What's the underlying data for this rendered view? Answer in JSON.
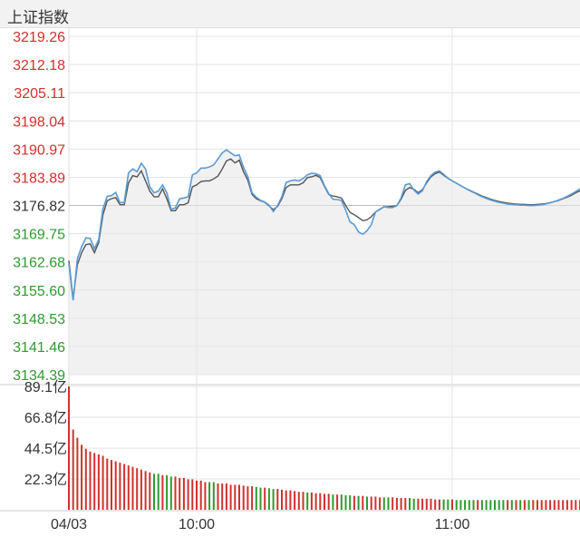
{
  "title": "上证指数",
  "colors": {
    "up": "#d0312d",
    "down": "#2e9b2e",
    "neutral": "#333333",
    "index_line": "#5a9bd5",
    "avg_line": "#555555",
    "grid": "#e3e3e3",
    "fill": "#e8e8e8"
  },
  "chart_data": [
    {
      "type": "line",
      "title": "上证指数",
      "prev_close": 3176.82,
      "ylim": [
        3134.39,
        3219.26
      ],
      "y_ticks": [
        "3219.26",
        "3212.18",
        "3205.11",
        "3198.04",
        "3190.97",
        "3183.89",
        "3176.82",
        "3169.75",
        "3162.68",
        "3155.60",
        "3148.53",
        "3141.46",
        "3134.39"
      ],
      "x": [
        0,
        2,
        4,
        6,
        8,
        10,
        12,
        14,
        16,
        18,
        20,
        22,
        24,
        26,
        28,
        30,
        32,
        34,
        36,
        38,
        40,
        42,
        44,
        46,
        48,
        50,
        52,
        54,
        56,
        58,
        60,
        62,
        64,
        66,
        68,
        70,
        72,
        74,
        76,
        78,
        80,
        82,
        84,
        86,
        88,
        90,
        92,
        94,
        96,
        98,
        100,
        102,
        104,
        106,
        108,
        110,
        112,
        114,
        116,
        118,
        120,
        122,
        124,
        126,
        128,
        130,
        132,
        134,
        136,
        138,
        140,
        142,
        144,
        146,
        148,
        150,
        152,
        154,
        156,
        158,
        160,
        162,
        164,
        166,
        168,
        170,
        172,
        174,
        176,
        178,
        180,
        182,
        184,
        186,
        188,
        190,
        192,
        194,
        196,
        198,
        200,
        202,
        204,
        206,
        208,
        210,
        212,
        214,
        216,
        218,
        220,
        222,
        224,
        226,
        228,
        230,
        232,
        234,
        236,
        238,
        240
      ],
      "x_ticks": [
        {
          "x": 0,
          "label": "04/03"
        },
        {
          "x": 60,
          "label": "10:00"
        },
        {
          "x": 180,
          "label": "11:00"
        }
      ],
      "series": [
        {
          "role": "index",
          "values": [
            3162.2,
            3153.0,
            3163.5,
            3166.5,
            3168.7,
            3168.6,
            3166.0,
            3168.2,
            3176.0,
            3179.1,
            3179.3,
            3180.1,
            3177.5,
            3177.6,
            3185.0,
            3186.0,
            3185.3,
            3187.4,
            3186.0,
            3181.5,
            3180.0,
            3180.4,
            3182.0,
            3180.0,
            3175.9,
            3176.2,
            3178.5,
            3178.7,
            3179.0,
            3184.5,
            3185.0,
            3186.2,
            3186.2,
            3186.5,
            3187.0,
            3188.5,
            3190.0,
            3190.8,
            3190.0,
            3189.3,
            3189.5,
            3186.4,
            3184.1,
            3180.0,
            3178.9,
            3178.1,
            3177.7,
            3176.9,
            3175.3,
            3176.8,
            3179.0,
            3182.6,
            3183.0,
            3183.2,
            3183.0,
            3183.6,
            3184.5,
            3184.9,
            3184.8,
            3184.3,
            3181.8,
            3179.8,
            3178.4,
            3178.3,
            3178.1,
            3175.6,
            3172.7,
            3172.0,
            3170.2,
            3169.6,
            3170.5,
            3172.0,
            3175.2,
            3175.8,
            3176.5,
            3176.3,
            3176.3,
            3176.8,
            3178.7,
            3182.0,
            3182.3,
            3180.7,
            3179.7,
            3180.5,
            3182.8,
            3184.3,
            3185.2,
            3185.5,
            3184.6,
            3183.7,
            3183.0,
            3182.4,
            3181.8,
            3181.2,
            3180.6,
            3180.1,
            3179.5,
            3179.0,
            3178.6,
            3178.2,
            3177.9,
            3177.6,
            3177.4,
            3177.2,
            3177.1,
            3177.0,
            3176.9,
            3176.9,
            3176.8,
            3176.8,
            3176.9,
            3177.0,
            3177.2,
            3177.5,
            3177.8,
            3178.2,
            3178.6,
            3179.1,
            3179.7,
            3180.3,
            3181.0
          ]
        },
        {
          "role": "average",
          "values": [
            3163.0,
            3153.5,
            3162.0,
            3165.0,
            3167.0,
            3167.2,
            3165.0,
            3167.5,
            3174.5,
            3178.0,
            3178.5,
            3178.8,
            3177.0,
            3177.0,
            3182.5,
            3184.3,
            3184.0,
            3185.5,
            3183.0,
            3180.4,
            3179.0,
            3179.0,
            3181.0,
            3178.5,
            3175.5,
            3175.5,
            3177.0,
            3177.0,
            3177.5,
            3181.5,
            3182.0,
            3182.8,
            3183.0,
            3183.0,
            3183.5,
            3184.2,
            3186.0,
            3188.0,
            3188.5,
            3187.5,
            3188.2,
            3185.3,
            3183.2,
            3179.6,
            3178.5,
            3178.0,
            3177.6,
            3176.7,
            3175.8,
            3176.6,
            3178.5,
            3181.3,
            3182.0,
            3182.0,
            3182.0,
            3182.5,
            3183.8,
            3184.0,
            3184.4,
            3183.8,
            3181.6,
            3179.6,
            3179.2,
            3179.0,
            3178.7,
            3176.8,
            3175.1,
            3174.5,
            3173.8,
            3173.0,
            3173.2,
            3174.0,
            3175.2,
            3175.9,
            3176.5,
            3176.5,
            3176.6,
            3176.8,
            3178.4,
            3180.6,
            3181.3,
            3180.9,
            3180.0,
            3180.8,
            3182.5,
            3184.0,
            3184.8,
            3185.2,
            3184.4,
            3183.6,
            3183.0,
            3182.4,
            3181.8,
            3181.2,
            3180.7,
            3180.2,
            3179.7,
            3179.2,
            3178.8,
            3178.4,
            3178.1,
            3177.8,
            3177.6,
            3177.4,
            3177.3,
            3177.2,
            3177.1,
            3177.1,
            3177.0,
            3177.0,
            3177.1,
            3177.2,
            3177.3,
            3177.5,
            3177.8,
            3178.1,
            3178.5,
            3178.9,
            3179.4,
            3180.0,
            3180.5
          ]
        }
      ]
    },
    {
      "type": "bar",
      "y_ticks": [
        "89.1亿",
        "66.8亿",
        "44.5亿",
        "22.3亿"
      ],
      "ylim": [
        0,
        89.1
      ],
      "x": [
        0,
        2,
        4,
        6,
        8,
        10,
        12,
        14,
        16,
        18,
        20,
        22,
        24,
        26,
        28,
        30,
        32,
        34,
        36,
        38,
        40,
        42,
        44,
        46,
        48,
        50,
        52,
        54,
        56,
        58,
        60,
        62,
        64,
        66,
        68,
        70,
        72,
        74,
        76,
        78,
        80,
        82,
        84,
        86,
        88,
        90,
        92,
        94,
        96,
        98,
        100,
        102,
        104,
        106,
        108,
        110,
        112,
        114,
        116,
        118,
        120,
        122,
        124,
        126,
        128,
        130,
        132,
        134,
        136,
        138,
        140,
        142,
        144,
        146,
        148,
        150,
        152,
        154,
        156,
        158,
        160,
        162,
        164,
        166,
        168,
        170,
        172,
        174,
        176,
        178,
        180,
        182,
        184,
        186,
        188,
        190,
        192,
        194,
        196,
        198,
        200,
        202,
        204,
        206,
        208,
        210,
        212,
        214,
        216,
        218,
        220,
        222,
        224,
        226,
        228,
        230,
        232,
        234,
        236,
        238,
        240
      ],
      "values": [
        89.1,
        58.0,
        52.0,
        47.0,
        44.0,
        42.0,
        41.0,
        40.0,
        39.0,
        37.0,
        36.0,
        35.0,
        34.0,
        33.0,
        32.0,
        31.0,
        30.0,
        29.0,
        28.0,
        27.0,
        26.0,
        26.0,
        25.0,
        25.0,
        24.0,
        24.0,
        23.0,
        23.0,
        22.0,
        22.0,
        21.0,
        21.0,
        20.0,
        20.0,
        20.0,
        19.0,
        19.0,
        19.0,
        18.0,
        18.0,
        18.0,
        17.5,
        17.0,
        17.0,
        16.5,
        16.0,
        16.0,
        15.5,
        15.0,
        15.0,
        14.5,
        14.0,
        14.0,
        13.5,
        13.0,
        13.0,
        12.5,
        12.5,
        12.0,
        12.0,
        11.5,
        11.5,
        11.0,
        11.0,
        11.0,
        10.5,
        10.5,
        10.0,
        10.0,
        10.0,
        9.5,
        9.5,
        9.5,
        9.0,
        9.0,
        9.0,
        9.0,
        8.5,
        8.5,
        8.5,
        8.5,
        8.0,
        8.0,
        8.0,
        8.0,
        8.0,
        7.5,
        7.5,
        7.5,
        7.5,
        7.5,
        7.0,
        7.0,
        7.0,
        7.0,
        7.0,
        7.0,
        7.0,
        7.0,
        7.0,
        7.0,
        7.0,
        7.0,
        7.0,
        7.0,
        7.0,
        7.0,
        7.0,
        7.0,
        7.0,
        7.0,
        7.0,
        7.0,
        7.0,
        7.0,
        7.0,
        7.0,
        7.0,
        7.0,
        7.0,
        7.0
      ],
      "directions": [
        "up",
        "up",
        "up",
        "up",
        "up",
        "up",
        "up",
        "up",
        "up",
        "up",
        "up",
        "up",
        "up",
        "up",
        "up",
        "up",
        "up",
        "up",
        "up",
        "up",
        "down",
        "down",
        "up",
        "down",
        "down",
        "up",
        "up",
        "up",
        "up",
        "up",
        "up",
        "up",
        "up",
        "down",
        "down",
        "up",
        "up",
        "up",
        "up",
        "up",
        "up",
        "up",
        "up",
        "up",
        "down",
        "down",
        "up",
        "down",
        "down",
        "up",
        "up",
        "up",
        "up",
        "up",
        "up",
        "up",
        "down",
        "up",
        "up",
        "up",
        "up",
        "up",
        "down",
        "up",
        "down",
        "down",
        "down",
        "up",
        "down",
        "up",
        "down",
        "up",
        "up",
        "up",
        "down",
        "down",
        "up",
        "up",
        "up",
        "up",
        "down",
        "down",
        "up",
        "up",
        "up",
        "up",
        "up",
        "up",
        "down",
        "down",
        "up",
        "down",
        "down",
        "down",
        "down",
        "down",
        "up",
        "down",
        "down",
        "down",
        "down",
        "down",
        "down",
        "up",
        "down",
        "up",
        "down",
        "up",
        "down",
        "up",
        "up",
        "up",
        "up",
        "up",
        "up",
        "up",
        "up",
        "up",
        "up",
        "up",
        "up"
      ]
    }
  ]
}
